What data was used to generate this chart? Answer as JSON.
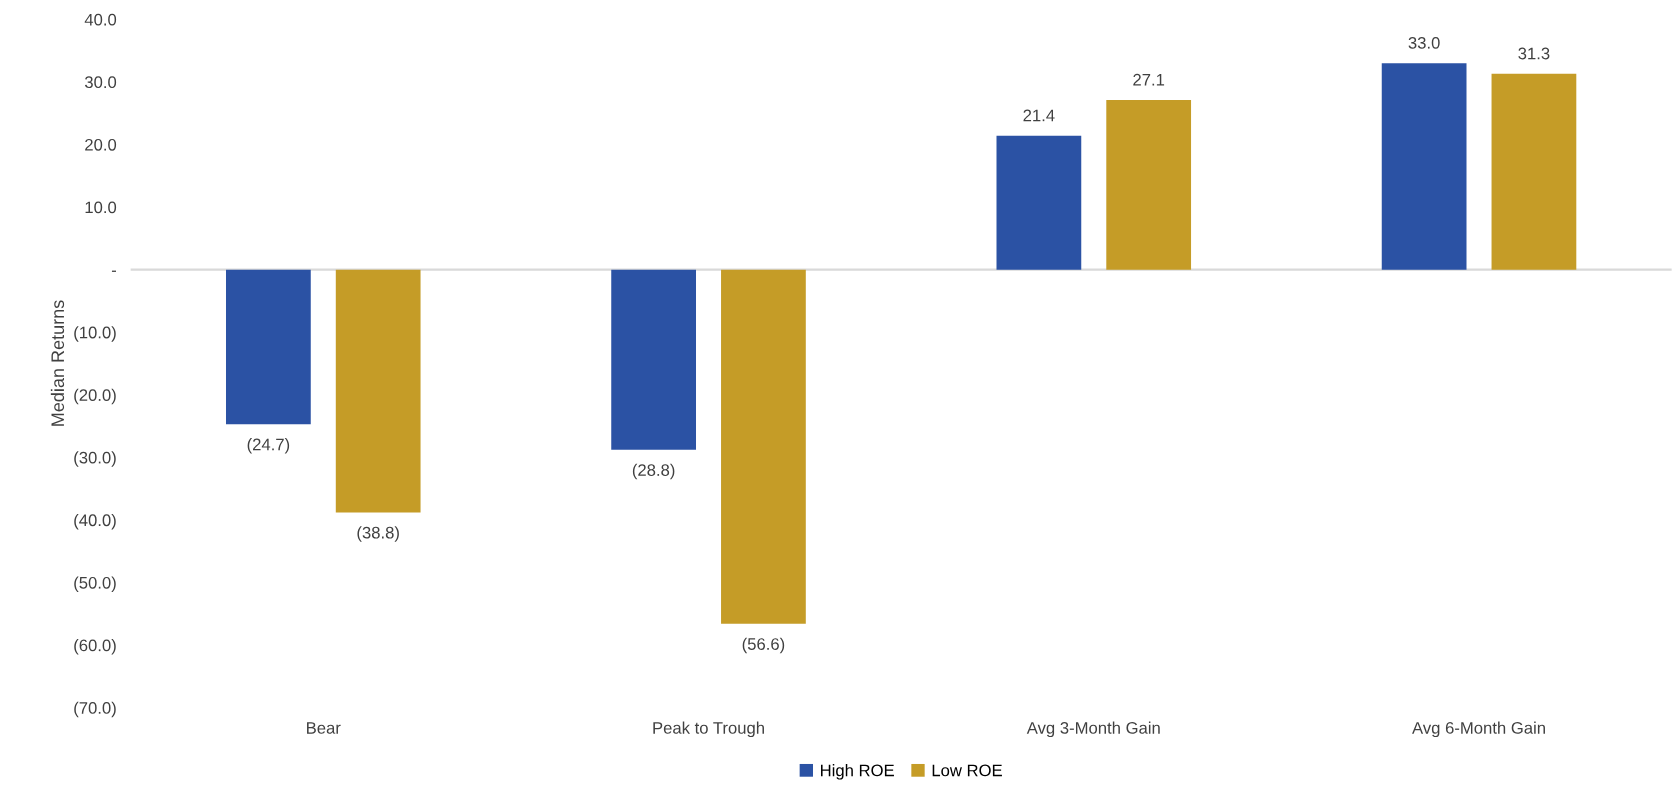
{
  "chart_data": {
    "type": "bar",
    "ylabel": "Median Returns",
    "categories": [
      "Bear",
      "Peak to Trough",
      "Avg 3-Month Gain",
      "Avg 6-Month Gain"
    ],
    "series": [
      {
        "name": "High ROE",
        "color": "#2b52a4",
        "values": [
          -24.7,
          -28.8,
          21.4,
          33.0
        ],
        "value_labels": [
          "(24.7)",
          "(28.8)",
          "21.4",
          "33.0"
        ]
      },
      {
        "name": "Low ROE",
        "color": "#c59c27",
        "values": [
          -38.8,
          -56.6,
          27.1,
          31.3
        ],
        "value_labels": [
          "(38.8)",
          "(56.6)",
          "27.1",
          "31.3"
        ]
      }
    ],
    "ylim": [
      -70,
      40
    ],
    "yticks": [
      {
        "value": 40,
        "label": "40.0"
      },
      {
        "value": 30,
        "label": "30.0"
      },
      {
        "value": 20,
        "label": "20.0"
      },
      {
        "value": 10,
        "label": "10.0"
      },
      {
        "value": 0,
        "label": "-"
      },
      {
        "value": -10,
        "label": "(10.0)"
      },
      {
        "value": -20,
        "label": "(20.0)"
      },
      {
        "value": -30,
        "label": "(30.0)"
      },
      {
        "value": -40,
        "label": "(40.0)"
      },
      {
        "value": -50,
        "label": "(50.0)"
      },
      {
        "value": -60,
        "label": "(60.0)"
      },
      {
        "value": -70,
        "label": "(70.0)"
      }
    ],
    "ref_lines": [
      {
        "axis": "y",
        "value": 0,
        "color": "#d9d9d9"
      }
    ],
    "grid": false,
    "legend": "bottom"
  }
}
